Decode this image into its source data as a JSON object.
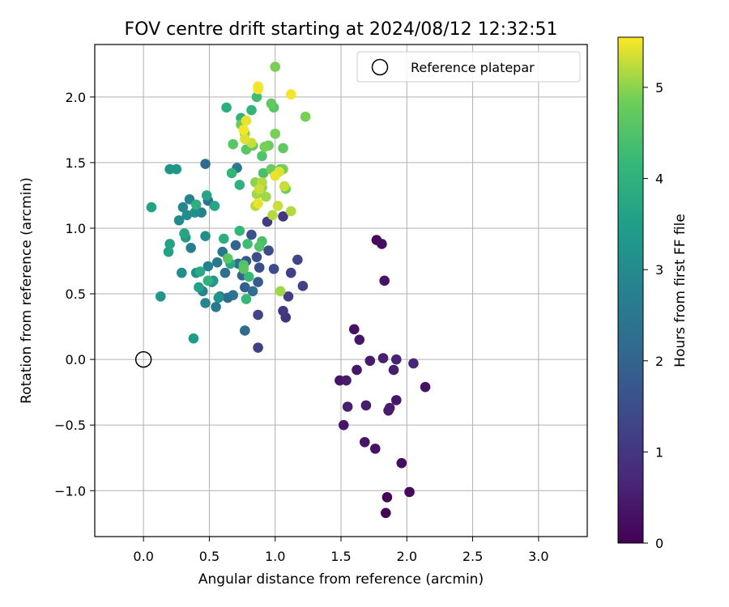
{
  "chart_data": {
    "type": "scatter",
    "title": "FOV centre drift starting at 2024/08/12 12:32:51",
    "xlabel": "Angular distance from reference (arcmin)",
    "ylabel": "Rotation from reference (arcmin)",
    "xlim": [
      -0.37,
      3.37
    ],
    "ylim": [
      -1.35,
      2.4
    ],
    "x_ticks": [
      0.0,
      0.5,
      1.0,
      1.5,
      2.0,
      2.5,
      3.0
    ],
    "x_tick_labels": [
      "0.0",
      "0.5",
      "1.0",
      "1.5",
      "2.0",
      "2.5",
      "3.0"
    ],
    "y_ticks": [
      -1.0,
      -0.5,
      0.0,
      0.5,
      1.0,
      1.5,
      2.0
    ],
    "y_tick_labels": [
      "−1.0",
      "−0.5",
      "0.0",
      "0.5",
      "1.0",
      "1.5",
      "2.0"
    ],
    "grid": true,
    "colorbar": {
      "label": "Hours from first FF file",
      "colormap": "viridis",
      "min": 0,
      "max": 5.55,
      "ticks": [
        0,
        1,
        2,
        3,
        4,
        5
      ],
      "tick_labels": [
        "0",
        "1",
        "2",
        "3",
        "4",
        "5"
      ]
    },
    "legend": {
      "position": "top-right",
      "entries": [
        "Reference platepar"
      ]
    },
    "reference_point": {
      "x": 0.0,
      "y": 0.0
    },
    "points": [
      [
        1.84,
        -1.17,
        0.02
      ],
      [
        1.85,
        -1.05,
        0.08
      ],
      [
        2.02,
        -1.01,
        0.12
      ],
      [
        1.96,
        -0.79,
        0.25
      ],
      [
        1.76,
        -0.68,
        0.3
      ],
      [
        1.68,
        -0.63,
        0.35
      ],
      [
        1.52,
        -0.5,
        0.4
      ],
      [
        1.86,
        -0.39,
        0.45
      ],
      [
        1.87,
        -0.37,
        0.5
      ],
      [
        1.92,
        -0.31,
        0.4
      ],
      [
        1.55,
        -0.36,
        0.55
      ],
      [
        1.69,
        -0.35,
        0.5
      ],
      [
        1.49,
        -0.16,
        0.35
      ],
      [
        1.54,
        -0.16,
        0.45
      ],
      [
        2.14,
        -0.21,
        0.3
      ],
      [
        1.62,
        -0.08,
        0.4
      ],
      [
        1.9,
        -0.08,
        0.5
      ],
      [
        1.72,
        -0.01,
        0.45
      ],
      [
        1.82,
        0.01,
        0.55
      ],
      [
        1.92,
        0.0,
        0.6
      ],
      [
        2.05,
        -0.03,
        0.65
      ],
      [
        1.6,
        0.23,
        0.3
      ],
      [
        1.64,
        0.15,
        0.4
      ],
      [
        1.77,
        0.91,
        0.2
      ],
      [
        1.81,
        0.88,
        0.25
      ],
      [
        1.83,
        0.6,
        0.3
      ],
      [
        0.87,
        0.09,
        1.2
      ],
      [
        0.77,
        0.22,
        2.2
      ],
      [
        1.08,
        0.32,
        0.95
      ],
      [
        1.06,
        0.37,
        1.05
      ],
      [
        0.87,
        0.34,
        1.3
      ],
      [
        0.83,
        0.52,
        2.3
      ],
      [
        0.87,
        0.59,
        1.8
      ],
      [
        0.82,
        0.95,
        1.6
      ],
      [
        0.94,
        1.05,
        1.1
      ],
      [
        1.06,
        1.09,
        1.0
      ],
      [
        1.1,
        0.48,
        1.15
      ],
      [
        1.12,
        0.66,
        1.2
      ],
      [
        1.21,
        0.56,
        1.25
      ],
      [
        1.17,
        0.76,
        1.3
      ],
      [
        0.99,
        0.69,
        1.5
      ],
      [
        0.95,
        0.83,
        1.45
      ],
      [
        0.88,
        0.7,
        1.5
      ],
      [
        0.86,
        0.78,
        1.55
      ],
      [
        0.78,
        0.75,
        1.7
      ],
      [
        0.75,
        0.64,
        2.0
      ],
      [
        0.77,
        0.55,
        1.9
      ],
      [
        0.72,
        0.73,
        2.2
      ],
      [
        0.68,
        0.49,
        2.4
      ],
      [
        0.64,
        0.47,
        2.2
      ],
      [
        0.58,
        0.48,
        2.6
      ],
      [
        0.55,
        0.4,
        2.5
      ],
      [
        0.52,
        0.59,
        2.7
      ],
      [
        0.47,
        0.43,
        2.9
      ],
      [
        0.45,
        0.52,
        2.8
      ],
      [
        0.49,
        0.71,
        2.75
      ],
      [
        0.56,
        0.74,
        2.55
      ],
      [
        0.6,
        0.82,
        2.5
      ],
      [
        0.62,
        0.66,
        2.3
      ],
      [
        0.7,
        0.87,
        2.0
      ],
      [
        0.47,
        1.49,
        2.2
      ],
      [
        0.49,
        1.21,
        2.35
      ],
      [
        0.71,
        1.46,
        2.5
      ],
      [
        0.36,
        0.85,
        2.7
      ],
      [
        0.44,
        1.12,
        2.75
      ],
      [
        0.35,
        1.22,
        2.8
      ],
      [
        0.3,
        1.16,
        2.9
      ],
      [
        0.27,
        1.06,
        3.0
      ],
      [
        0.39,
        1.12,
        3.1
      ],
      [
        0.33,
        1.1,
        3.05
      ],
      [
        0.4,
        0.66,
        3.1
      ],
      [
        0.29,
        0.66,
        3.05
      ],
      [
        0.32,
        0.93,
        3.4
      ],
      [
        0.47,
        0.94,
        3.1
      ],
      [
        0.53,
        0.6,
        3.3
      ],
      [
        0.57,
        0.47,
        3.2
      ],
      [
        0.2,
        1.45,
        3.2
      ],
      [
        0.25,
        1.45,
        3.3
      ],
      [
        0.13,
        0.48,
        3.25
      ],
      [
        0.06,
        1.16,
        3.6
      ],
      [
        0.38,
        0.16,
        3.4
      ],
      [
        0.2,
        0.88,
        3.6
      ],
      [
        0.19,
        0.82,
        3.6
      ],
      [
        0.31,
        0.96,
        3.7
      ],
      [
        0.42,
        0.55,
        3.6
      ],
      [
        0.48,
        1.25,
        3.7
      ],
      [
        0.54,
        1.17,
        3.7
      ],
      [
        0.4,
        1.18,
        3.9
      ],
      [
        0.43,
        0.67,
        3.8
      ],
      [
        0.49,
        0.6,
        4.0
      ],
      [
        0.61,
        0.92,
        3.9
      ],
      [
        0.66,
        0.73,
        3.8
      ],
      [
        0.63,
        1.92,
        3.9
      ],
      [
        0.74,
        1.84,
        4.0
      ],
      [
        0.82,
        1.9,
        4.1
      ],
      [
        0.86,
        2.0,
        4.3
      ],
      [
        0.73,
        1.33,
        4.0
      ],
      [
        0.67,
        1.42,
        4.1
      ],
      [
        0.73,
        0.98,
        4.1
      ],
      [
        0.78,
        0.46,
        4.2
      ],
      [
        0.8,
        0.63,
        4.2
      ],
      [
        0.79,
        0.88,
        4.3
      ],
      [
        0.88,
        0.86,
        4.5
      ],
      [
        0.9,
        0.9,
        4.4
      ],
      [
        0.76,
        0.69,
        4.6
      ],
      [
        0.76,
        0.72,
        4.5
      ],
      [
        0.64,
        0.77,
        4.6
      ],
      [
        0.68,
        1.64,
        4.6
      ],
      [
        0.78,
        1.6,
        4.6
      ],
      [
        0.83,
        1.63,
        4.7
      ],
      [
        0.9,
        1.55,
        4.5
      ],
      [
        0.91,
        1.42,
        4.4
      ],
      [
        0.95,
        1.63,
        4.8
      ],
      [
        0.92,
        1.62,
        4.9
      ],
      [
        0.97,
        1.45,
        4.8
      ],
      [
        1.04,
        1.45,
        4.7
      ],
      [
        1.06,
        1.45,
        4.9
      ],
      [
        1.06,
        1.61,
        4.7
      ],
      [
        1.08,
        1.3,
        4.8
      ],
      [
        0.97,
        1.95,
        4.7
      ],
      [
        0.99,
        1.92,
        4.6
      ],
      [
        1.0,
        1.72,
        4.9
      ],
      [
        1.0,
        2.23,
        4.9
      ],
      [
        1.23,
        1.85,
        4.9
      ],
      [
        0.74,
        1.79,
        4.8
      ],
      [
        0.77,
        1.72,
        5.0
      ],
      [
        0.85,
        1.35,
        5.0
      ],
      [
        0.86,
        1.26,
        5.1
      ],
      [
        0.85,
        1.17,
        5.2
      ],
      [
        0.9,
        1.31,
        5.0
      ],
      [
        0.93,
        1.24,
        5.1
      ],
      [
        0.98,
        1.1,
        5.2
      ],
      [
        1.02,
        1.17,
        5.3
      ],
      [
        1.04,
        0.52,
        5.1
      ],
      [
        1.12,
        1.13,
        5.2
      ],
      [
        0.82,
        1.65,
        5.3
      ],
      [
        0.77,
        1.68,
        5.4
      ],
      [
        0.76,
        1.75,
        5.5
      ],
      [
        0.78,
        1.82,
        5.45
      ],
      [
        0.87,
        2.06,
        5.5
      ],
      [
        0.87,
        2.08,
        5.5
      ],
      [
        1.12,
        2.02,
        5.5
      ],
      [
        1.0,
        1.4,
        5.45
      ],
      [
        1.03,
        1.43,
        5.4
      ],
      [
        0.87,
        1.19,
        5.45
      ],
      [
        0.88,
        1.3,
        5.3
      ],
      [
        1.07,
        1.32,
        5.3
      ],
      [
        0.9,
        1.35,
        5.2
      ]
    ]
  }
}
